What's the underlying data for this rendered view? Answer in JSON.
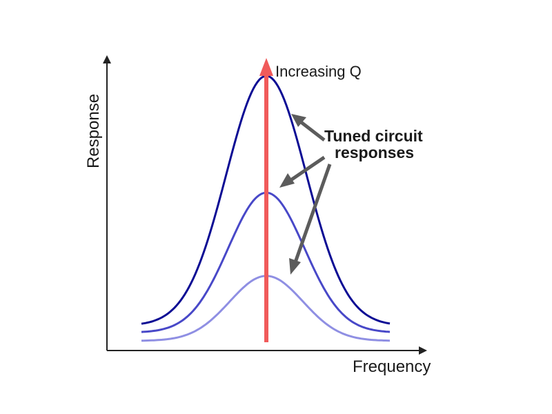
{
  "labels": {
    "y_axis": "Response",
    "x_axis": "Frequency",
    "peak_arrow": "Increasing Q",
    "annotation_line1": "Tuned circuit",
    "annotation_line2": "responses"
  },
  "curves": [
    {
      "peak": 1.0,
      "color": "#0b0b94"
    },
    {
      "peak": 0.56,
      "color": "#4848c8"
    },
    {
      "peak": 0.26,
      "color": "#8f8fe3"
    }
  ],
  "colors": {
    "axis": "#222222",
    "q_arrow": "#f05a5a",
    "pointer_arrows": "#5c5c5c"
  }
}
